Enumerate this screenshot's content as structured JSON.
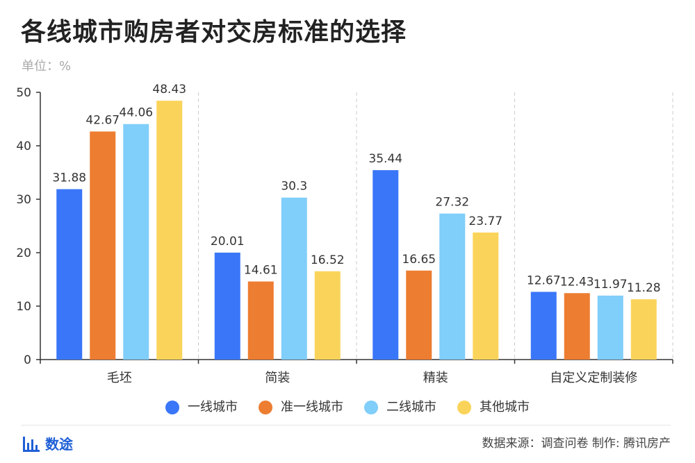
{
  "title": "各线城市购房者对交房标准的选择",
  "unit_label": "单位：%",
  "chart_data": {
    "type": "bar",
    "title": "各线城市购房者对交房标准的选择",
    "xlabel": "",
    "ylabel": "",
    "categories": [
      "毛坯",
      "简装",
      "精装",
      "自定义定制装修"
    ],
    "series": [
      {
        "name": "一线城市",
        "color": "#3a76f8",
        "values": [
          31.88,
          20.01,
          35.44,
          12.67
        ],
        "labels": [
          "31.88",
          "20.01",
          "35.44",
          "12.67"
        ]
      },
      {
        "name": "准一线城市",
        "color": "#ed7d31",
        "values": [
          42.67,
          14.61,
          16.65,
          12.43
        ],
        "labels": [
          "42.67",
          "14.61",
          "16.65",
          "12.43"
        ]
      },
      {
        "name": "二线城市",
        "color": "#80cefa",
        "values": [
          44.06,
          30.3,
          27.32,
          11.97
        ],
        "labels": [
          "44.06",
          "30.3",
          "27.32",
          "11.97"
        ]
      },
      {
        "name": "其他城市",
        "color": "#fad45a",
        "values": [
          48.43,
          16.52,
          23.77,
          11.28
        ],
        "labels": [
          "48.43",
          "16.52",
          "23.77",
          "11.28"
        ]
      }
    ],
    "ylim": [
      0,
      50
    ],
    "yticks": [
      0,
      10,
      20,
      30,
      40,
      50
    ],
    "grid": false,
    "category_separators": "dashed",
    "legend": "bottom"
  },
  "footer": {
    "brand": "数途",
    "brand_icon": "bar-chart-icon",
    "source": "数据来源：调查问卷 制作: 腾讯房产"
  },
  "colors": {
    "brand": "#1f5fd6",
    "axis": "#333333",
    "separator": "#cccccc"
  }
}
